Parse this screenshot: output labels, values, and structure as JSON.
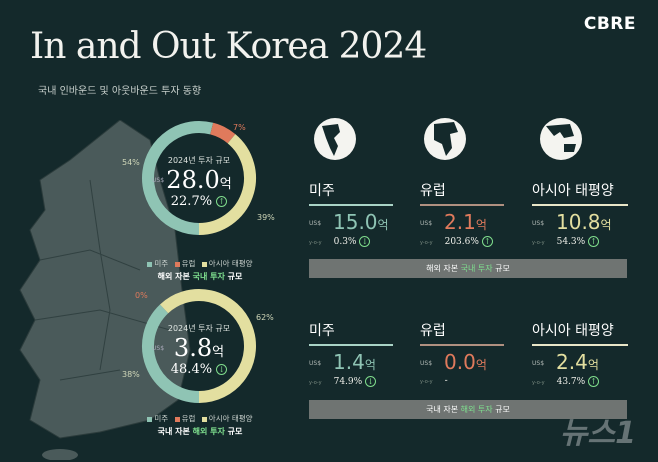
{
  "header": {
    "title": "In and Out Korea 2024",
    "subtitle": "국내 인바운드 및 아웃바운드 투자 동향",
    "logo": "CBRE"
  },
  "colors": {
    "americas": "#8fc4b4",
    "europe": "#e07a5c",
    "asia_pacific": "#e3dfa0",
    "background": "#14292b",
    "highlight": "#7fe08f"
  },
  "inbound": {
    "year_label": "2024년 투자 규모",
    "currency": "US$",
    "value": "28.0",
    "unit": "억",
    "yoy": "22.7%",
    "yoy_direction": "up",
    "yoy_label": "y-o-y",
    "segments": [
      {
        "region": "미주",
        "percent": 54,
        "label": "54%"
      },
      {
        "region": "유럽",
        "percent": 7,
        "label": "7%"
      },
      {
        "region": "아시아 태평양",
        "percent": 39,
        "label": "39%"
      }
    ],
    "legend": [
      "미주",
      "유럽",
      "아시아 태평양"
    ],
    "caption_pre": "해외 자본 ",
    "caption_hl": "국내 투자",
    "caption_post": " 규모",
    "regions": [
      {
        "name": "미주",
        "currency": "US$",
        "value": "15.0",
        "unit": "억",
        "yoy_label": "y-o-y",
        "yoy": "0.3%",
        "direction": "down"
      },
      {
        "name": "유럽",
        "currency": "US$",
        "value": "2.1",
        "unit": "억",
        "yoy_label": "y-o-y",
        "yoy": "203.6%",
        "direction": "up"
      },
      {
        "name": "아시아 태평양",
        "currency": "US$",
        "value": "10.8",
        "unit": "억",
        "yoy_label": "y-o-y",
        "yoy": "54.3%",
        "direction": "up"
      }
    ]
  },
  "outbound": {
    "year_label": "2024년 투자 규모",
    "currency": "US$",
    "value": "3.8",
    "unit": "억",
    "yoy": "48.4%",
    "yoy_direction": "down",
    "yoy_label": "y-o-y",
    "segments": [
      {
        "region": "미주",
        "percent": 38,
        "label": "38%"
      },
      {
        "region": "유럽",
        "percent": 0,
        "label": "0%"
      },
      {
        "region": "아시아 태평양",
        "percent": 62,
        "label": "62%"
      }
    ],
    "legend": [
      "미주",
      "유럽",
      "아시아 태평양"
    ],
    "caption_pre": "국내 자본 ",
    "caption_hl": "해외 투자",
    "caption_post": " 규모",
    "regions": [
      {
        "name": "미주",
        "currency": "US$",
        "value": "1.4",
        "unit": "억",
        "yoy_label": "y-o-y",
        "yoy": "74.9%",
        "direction": "down"
      },
      {
        "name": "유럽",
        "currency": "US$",
        "value": "0.0",
        "unit": "억",
        "yoy_label": "y-o-y",
        "yoy": "-",
        "direction": "none"
      },
      {
        "name": "아시아 태평양",
        "currency": "US$",
        "value": "2.4",
        "unit": "억",
        "yoy_label": "y-o-y",
        "yoy": "43.7%",
        "direction": "up"
      }
    ]
  },
  "watermark": "뉴스1"
}
